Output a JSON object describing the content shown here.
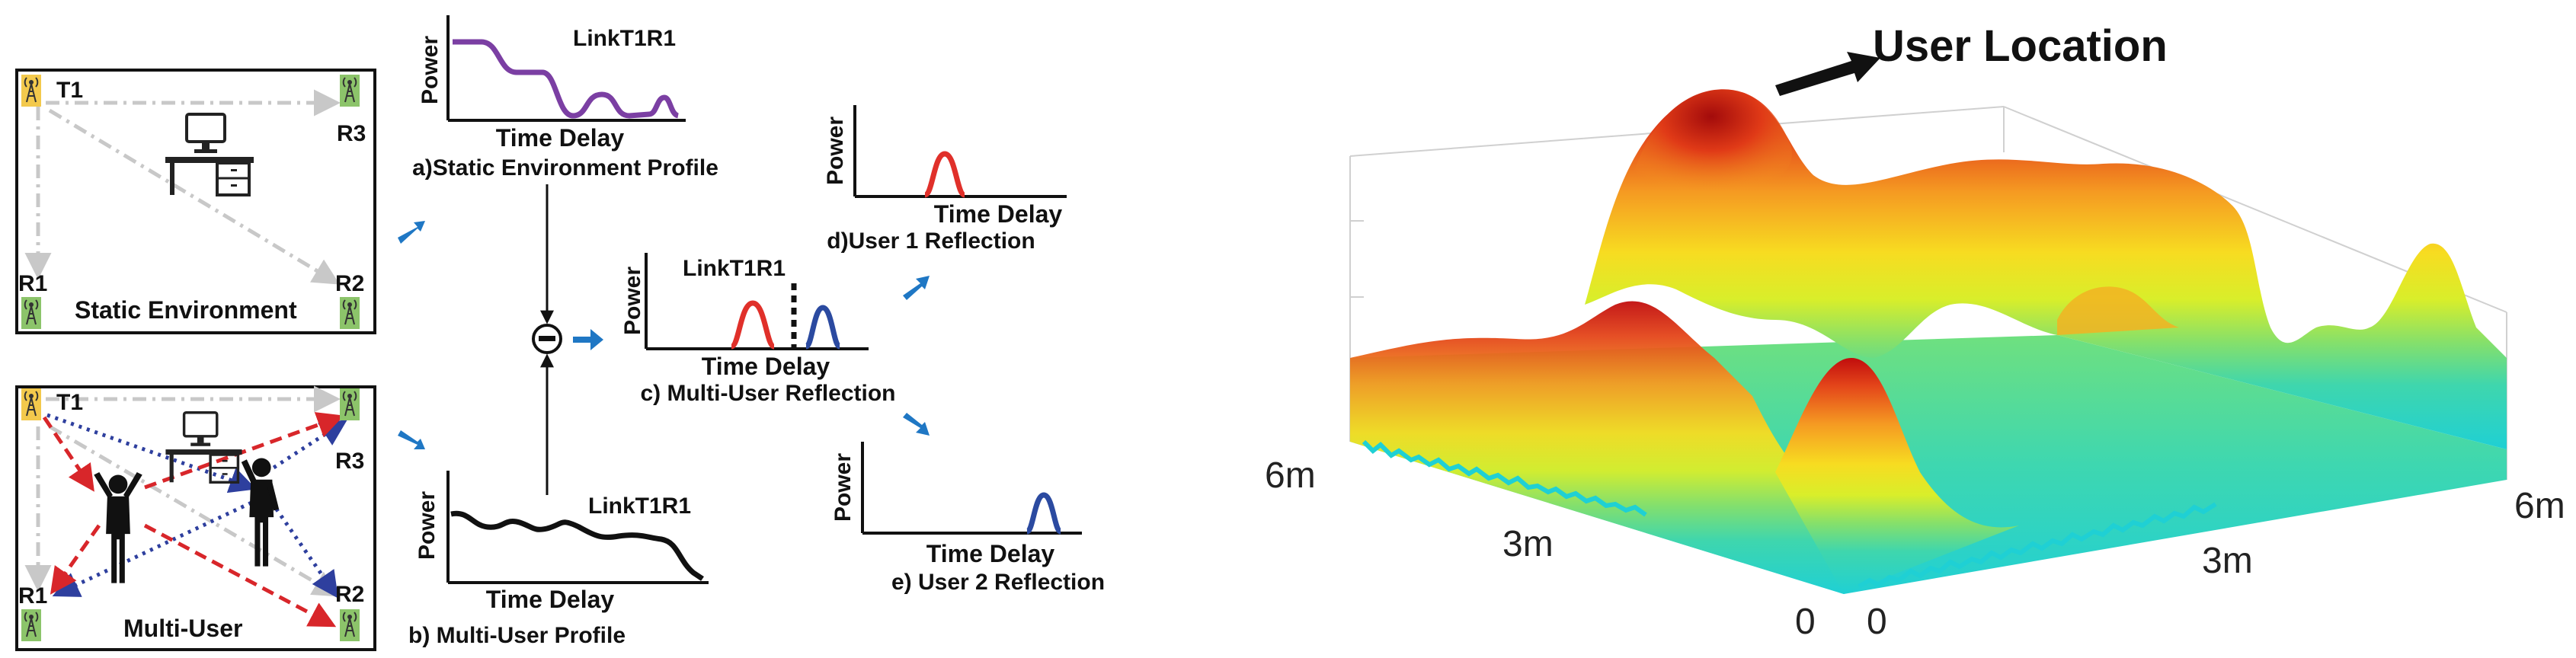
{
  "rooms": {
    "static": {
      "label": "Static Environment",
      "tx_label": "T1",
      "rx_labels": {
        "r1": "R1",
        "r2": "R2",
        "r3": "R3"
      }
    },
    "multi": {
      "label": "Multi-User",
      "tx_label": "T1",
      "rx_labels": {
        "r1": "R1",
        "r2": "R2",
        "r3": "R3"
      }
    }
  },
  "panels": {
    "a": {
      "link_label": "LinkT1R1",
      "y_label": "Power",
      "x_label": "Time Delay",
      "caption": "a)Static Environment Profile"
    },
    "b": {
      "link_label": "LinkT1R1",
      "y_label": "Power",
      "x_label": "Time Delay",
      "caption": "b)  Multi-User Profile"
    },
    "c": {
      "link_label": "LinkT1R1",
      "y_label": "Power",
      "x_label": "Time Delay",
      "caption": "c) Multi-User Reflection"
    },
    "d": {
      "y_label": "Power",
      "x_label": "Time Delay",
      "caption": "d)User 1 Reflection"
    },
    "e": {
      "y_label": "Power",
      "x_label": "Time Delay",
      "caption": "e) User 2 Reflection"
    }
  },
  "subtract_symbol": "−",
  "surface": {
    "annotation": "User Location",
    "axis_labels": {
      "left_far": "6m",
      "left_mid": "3m",
      "left_zero": "0",
      "right_zero": "0",
      "right_mid": "3m",
      "right_far": "6m"
    }
  },
  "colors": {
    "arrow_blue": "#1f77c4",
    "static_curve": "#7b3fa3",
    "user1_peak": "#e0302a",
    "user2_peak": "#2b4aa0",
    "path_gray": "#c8c8c8",
    "path_blue": "#2e3f9e",
    "path_red": "#d8262a",
    "antenna_yellow": "#f3c94c",
    "antenna_green": "#8cc46a"
  }
}
